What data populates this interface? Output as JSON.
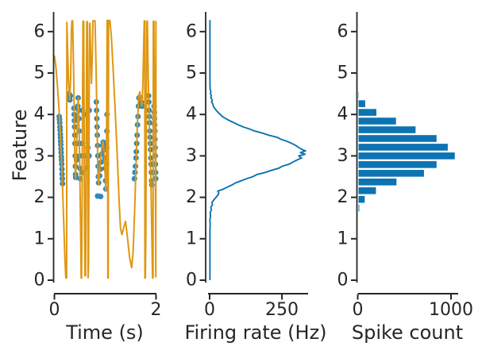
{
  "figure": {
    "background": "#ffffff"
  },
  "palette": {
    "blue": "#0d73b2",
    "orange": "#df9713",
    "axis_color": "#262626",
    "bar_edge": "#ffffff"
  },
  "chart_data": [
    {
      "id": "feature_vs_time",
      "type": "line+scatter",
      "xlabel": "Time (s)",
      "ylabel": "Feature",
      "xlim": [
        0,
        2
      ],
      "ylim": [
        0,
        6.28
      ],
      "xticks": {
        "values": [
          0,
          2
        ],
        "labels": [
          "0",
          "2"
        ]
      },
      "yticks": {
        "values": [
          0,
          1,
          2,
          3,
          4,
          5,
          6
        ],
        "labels": [
          "0",
          "1",
          "2",
          "3",
          "4",
          "5",
          "6"
        ]
      },
      "signal": [
        [
          0,
          5.42
        ],
        [
          0.03,
          5.15
        ],
        [
          0.06,
          4.7
        ],
        [
          0.09,
          4.15
        ],
        [
          0.12,
          3.45
        ],
        [
          0.15,
          2.6
        ],
        [
          0.18,
          1.55
        ],
        [
          0.21,
          0.45
        ],
        [
          0.225,
          0.06
        ],
        [
          0.24,
          0.05
        ],
        [
          0.245,
          6.22
        ],
        [
          0.26,
          5.6
        ],
        [
          0.28,
          4.75
        ],
        [
          0.3,
          4.35
        ],
        [
          0.32,
          4.9
        ],
        [
          0.335,
          6.0
        ],
        [
          0.345,
          6.26
        ],
        [
          0.36,
          6.26
        ],
        [
          0.375,
          5.3
        ],
        [
          0.39,
          4.0
        ],
        [
          0.405,
          2.8
        ],
        [
          0.415,
          2.45
        ],
        [
          0.43,
          2.85
        ],
        [
          0.445,
          3.5
        ],
        [
          0.46,
          4.2
        ],
        [
          0.47,
          4.4
        ],
        [
          0.48,
          4.05
        ],
        [
          0.49,
          3.4
        ],
        [
          0.5,
          2.6
        ],
        [
          0.515,
          1.3
        ],
        [
          0.527,
          0.06
        ],
        [
          0.535,
          0.05
        ],
        [
          0.545,
          1.8
        ],
        [
          0.555,
          4.4
        ],
        [
          0.562,
          6.25
        ],
        [
          0.576,
          6.25
        ],
        [
          0.585,
          4.2
        ],
        [
          0.593,
          1.2
        ],
        [
          0.6,
          0.12
        ],
        [
          0.606,
          0.5
        ],
        [
          0.612,
          0.1
        ],
        [
          0.62,
          1.4
        ],
        [
          0.63,
          4.6
        ],
        [
          0.637,
          6.24
        ],
        [
          0.648,
          6.24
        ],
        [
          0.656,
          3.4
        ],
        [
          0.663,
          0.06
        ],
        [
          0.672,
          0.4
        ],
        [
          0.68,
          2.6
        ],
        [
          0.687,
          5.3
        ],
        [
          0.693,
          6.2
        ],
        [
          0.7,
          6.2
        ],
        [
          0.715,
          5.3
        ],
        [
          0.73,
          4.75
        ],
        [
          0.745,
          5.4
        ],
        [
          0.76,
          6.26
        ],
        [
          0.8,
          6.26
        ],
        [
          0.82,
          5.1
        ],
        [
          0.84,
          3.7
        ],
        [
          0.858,
          2.5
        ],
        [
          0.868,
          2.3
        ],
        [
          0.885,
          2.5
        ],
        [
          0.91,
          2.95
        ],
        [
          0.945,
          3.3
        ],
        [
          0.96,
          3.35
        ],
        [
          0.98,
          3.1
        ],
        [
          1.0,
          2.5
        ],
        [
          1.01,
          2.15
        ],
        [
          1.02,
          2.5
        ],
        [
          1.03,
          4.0
        ],
        [
          1.038,
          6.27
        ],
        [
          1.048,
          6.27
        ],
        [
          1.052,
          0.05
        ],
        [
          1.06,
          0.05
        ],
        [
          1.065,
          6.27
        ],
        [
          1.075,
          6.27
        ],
        [
          1.09,
          6.27
        ],
        [
          1.12,
          5.9
        ],
        [
          1.16,
          5.0
        ],
        [
          1.2,
          4.0
        ],
        [
          1.24,
          2.9
        ],
        [
          1.27,
          2.0
        ],
        [
          1.3,
          1.25
        ],
        [
          1.33,
          1.1
        ],
        [
          1.36,
          1.25
        ],
        [
          1.4,
          1.42
        ],
        [
          1.44,
          1.0
        ],
        [
          1.48,
          0.55
        ],
        [
          1.52,
          0.3
        ],
        [
          1.55,
          0.7
        ],
        [
          1.58,
          1.7
        ],
        [
          1.61,
          2.9
        ],
        [
          1.635,
          3.8
        ],
        [
          1.66,
          4.45
        ],
        [
          1.68,
          4.55
        ],
        [
          1.7,
          4.35
        ],
        [
          1.72,
          4.2
        ],
        [
          1.74,
          4.7
        ],
        [
          1.76,
          5.8
        ],
        [
          1.768,
          6.26
        ],
        [
          1.778,
          6.26
        ],
        [
          1.782,
          0.05
        ],
        [
          1.79,
          0.05
        ],
        [
          1.8,
          1.2
        ],
        [
          1.81,
          4.2
        ],
        [
          1.817,
          6.25
        ],
        [
          1.83,
          6.25
        ],
        [
          1.845,
          5.0
        ],
        [
          1.862,
          4.0
        ],
        [
          1.88,
          3.2
        ],
        [
          1.895,
          2.6
        ],
        [
          1.91,
          1.7
        ],
        [
          1.925,
          0.5
        ],
        [
          1.932,
          0.06
        ],
        [
          1.94,
          0.05
        ],
        [
          1.947,
          6.25
        ],
        [
          1.958,
          6.25
        ],
        [
          1.968,
          4.8
        ],
        [
          1.978,
          3.6
        ],
        [
          1.988,
          2.6
        ],
        [
          1.992,
          1.4
        ],
        [
          1.996,
          0.08
        ],
        [
          1.998,
          6.25
        ],
        [
          2.0,
          6.25
        ]
      ],
      "spikes": [
        [
          0.095,
          3.95
        ],
        [
          0.1,
          3.88
        ],
        [
          0.105,
          3.8
        ],
        [
          0.11,
          3.7
        ],
        [
          0.113,
          3.62
        ],
        [
          0.117,
          3.52
        ],
        [
          0.12,
          3.44
        ],
        [
          0.123,
          3.35
        ],
        [
          0.126,
          3.27
        ],
        [
          0.13,
          3.17
        ],
        [
          0.133,
          3.08
        ],
        [
          0.137,
          2.98
        ],
        [
          0.14,
          2.9
        ],
        [
          0.144,
          2.8
        ],
        [
          0.148,
          2.68
        ],
        [
          0.152,
          2.56
        ],
        [
          0.156,
          2.45
        ],
        [
          0.16,
          2.33
        ],
        [
          0.285,
          4.5
        ],
        [
          0.295,
          4.4
        ],
        [
          0.305,
          4.35
        ],
        [
          0.315,
          4.45
        ],
        [
          0.385,
          4.15
        ],
        [
          0.39,
          4.0
        ],
        [
          0.394,
          3.85
        ],
        [
          0.398,
          3.7
        ],
        [
          0.402,
          3.5
        ],
        [
          0.406,
          3.3
        ],
        [
          0.41,
          3.0
        ],
        [
          0.413,
          2.75
        ],
        [
          0.416,
          2.55
        ],
        [
          0.42,
          2.48
        ],
        [
          0.435,
          2.9
        ],
        [
          0.445,
          3.3
        ],
        [
          0.455,
          3.9
        ],
        [
          0.462,
          4.2
        ],
        [
          0.468,
          4.4
        ],
        [
          0.478,
          4.1
        ],
        [
          0.483,
          3.9
        ],
        [
          0.488,
          3.6
        ],
        [
          0.493,
          3.3
        ],
        [
          0.498,
          3.0
        ],
        [
          0.503,
          2.7
        ],
        [
          0.508,
          2.45
        ],
        [
          0.548,
          2.6
        ],
        [
          0.551,
          3.3
        ],
        [
          0.554,
          4.1
        ],
        [
          0.586,
          4.0
        ],
        [
          0.589,
          3.0
        ],
        [
          0.628,
          2.7
        ],
        [
          0.632,
          4.0
        ],
        [
          0.658,
          3.2
        ],
        [
          0.682,
          3.0
        ],
        [
          0.685,
          4.1
        ],
        [
          0.825,
          4.3
        ],
        [
          0.83,
          4.1
        ],
        [
          0.835,
          3.9
        ],
        [
          0.84,
          3.7
        ],
        [
          0.845,
          3.5
        ],
        [
          0.85,
          3.25
        ],
        [
          0.855,
          3.0
        ],
        [
          0.86,
          2.75
        ],
        [
          0.865,
          2.5
        ],
        [
          0.87,
          2.35
        ],
        [
          0.85,
          2.03
        ],
        [
          0.91,
          2.02
        ],
        [
          0.89,
          2.52
        ],
        [
          0.905,
          2.68
        ],
        [
          0.92,
          2.85
        ],
        [
          0.935,
          3.05
        ],
        [
          0.95,
          3.25
        ],
        [
          0.962,
          3.33
        ],
        [
          0.972,
          3.28
        ],
        [
          0.982,
          3.15
        ],
        [
          0.992,
          2.95
        ],
        [
          1.0,
          2.7
        ],
        [
          1.008,
          2.4
        ],
        [
          1.013,
          2.2
        ],
        [
          1.028,
          2.8
        ],
        [
          1.031,
          3.2
        ],
        [
          1.034,
          3.6
        ],
        [
          1.036,
          4.0
        ],
        [
          1.575,
          2.45
        ],
        [
          1.585,
          2.6
        ],
        [
          1.595,
          2.75
        ],
        [
          1.605,
          2.95
        ],
        [
          1.612,
          3.1
        ],
        [
          1.62,
          3.3
        ],
        [
          1.628,
          3.5
        ],
        [
          1.636,
          3.75
        ],
        [
          1.645,
          3.95
        ],
        [
          1.655,
          4.2
        ],
        [
          1.663,
          4.4
        ],
        [
          1.695,
          4.4
        ],
        [
          1.71,
          4.3
        ],
        [
          1.725,
          4.2
        ],
        [
          1.852,
          4.45
        ],
        [
          1.858,
          4.3
        ],
        [
          1.863,
          4.1
        ],
        [
          1.868,
          3.95
        ],
        [
          1.873,
          3.8
        ],
        [
          1.878,
          3.6
        ],
        [
          1.883,
          3.45
        ],
        [
          1.888,
          3.3
        ],
        [
          1.893,
          3.15
        ],
        [
          1.898,
          2.95
        ],
        [
          1.903,
          2.8
        ],
        [
          1.908,
          2.6
        ],
        [
          1.913,
          2.4
        ],
        [
          1.918,
          2.3
        ],
        [
          1.962,
          4.2
        ],
        [
          1.966,
          4.05
        ],
        [
          1.97,
          3.9
        ],
        [
          1.973,
          3.75
        ],
        [
          1.976,
          3.6
        ],
        [
          1.979,
          3.4
        ],
        [
          1.982,
          3.2
        ],
        [
          1.985,
          3.0
        ],
        [
          1.988,
          2.8
        ],
        [
          1.991,
          2.6
        ],
        [
          1.994,
          2.45
        ]
      ]
    },
    {
      "id": "rate_tuning_curve",
      "type": "line",
      "xlabel": "Firing rate (Hz)",
      "ylabel": "",
      "xlim": [
        0,
        340
      ],
      "ylim": [
        0,
        6.28
      ],
      "xticks": {
        "values": [
          0,
          250
        ],
        "labels": [
          "0",
          "250"
        ]
      },
      "yticks": {
        "values": [
          0,
          1,
          2,
          3,
          4,
          5,
          6
        ],
        "labels": [
          "0",
          "1",
          "2",
          "3",
          "4",
          "5",
          "6"
        ]
      },
      "points": [
        [
          0,
          1
        ],
        [
          0.4,
          1
        ],
        [
          0.8,
          1
        ],
        [
          1.2,
          1
        ],
        [
          1.35,
          2
        ],
        [
          1.45,
          1
        ],
        [
          1.55,
          3
        ],
        [
          1.63,
          2
        ],
        [
          1.7,
          6
        ],
        [
          1.76,
          4
        ],
        [
          1.82,
          10
        ],
        [
          1.88,
          8
        ],
        [
          1.95,
          16
        ],
        [
          2.0,
          22
        ],
        [
          2.05,
          28
        ],
        [
          2.1,
          32
        ],
        [
          2.15,
          28
        ],
        [
          2.2,
          48
        ],
        [
          2.25,
          62
        ],
        [
          2.3,
          78
        ],
        [
          2.35,
          90
        ],
        [
          2.4,
          110
        ],
        [
          2.45,
          128
        ],
        [
          2.5,
          150
        ],
        [
          2.55,
          163
        ],
        [
          2.6,
          192
        ],
        [
          2.65,
          213
        ],
        [
          2.7,
          238
        ],
        [
          2.75,
          252
        ],
        [
          2.8,
          275
        ],
        [
          2.85,
          288
        ],
        [
          2.9,
          302
        ],
        [
          2.95,
          318
        ],
        [
          3.0,
          308
        ],
        [
          3.04,
          330
        ],
        [
          3.08,
          314
        ],
        [
          3.12,
          332
        ],
        [
          3.16,
          318
        ],
        [
          3.2,
          309
        ],
        [
          3.25,
          298
        ],
        [
          3.3,
          284
        ],
        [
          3.35,
          268
        ],
        [
          3.4,
          247
        ],
        [
          3.45,
          233
        ],
        [
          3.5,
          204
        ],
        [
          3.55,
          183
        ],
        [
          3.6,
          156
        ],
        [
          3.65,
          138
        ],
        [
          3.7,
          116
        ],
        [
          3.75,
          99
        ],
        [
          3.8,
          84
        ],
        [
          3.85,
          69
        ],
        [
          3.9,
          56
        ],
        [
          3.95,
          44
        ],
        [
          4.0,
          37
        ],
        [
          4.05,
          29
        ],
        [
          4.1,
          23
        ],
        [
          4.15,
          17
        ],
        [
          4.2,
          13
        ],
        [
          4.25,
          11
        ],
        [
          4.3,
          7
        ],
        [
          4.35,
          9
        ],
        [
          4.4,
          4
        ],
        [
          4.45,
          6
        ],
        [
          4.5,
          3
        ],
        [
          4.55,
          4
        ],
        [
          4.6,
          2
        ],
        [
          4.7,
          1
        ],
        [
          4.9,
          1
        ],
        [
          5.2,
          1
        ],
        [
          5.6,
          1
        ],
        [
          6.0,
          1
        ],
        [
          6.28,
          1
        ]
      ]
    },
    {
      "id": "spike_count_histogram",
      "type": "bar-h",
      "xlabel": "Spike count",
      "ylabel": "",
      "xlim": [
        0,
        1085
      ],
      "ylim": [
        0,
        6.28
      ],
      "xticks": {
        "values": [
          0,
          1000
        ],
        "labels": [
          "0",
          "1000"
        ]
      },
      "yticks": {
        "values": [
          0,
          1,
          2,
          3,
          4,
          5,
          6
        ],
        "labels": [
          "0",
          "1",
          "2",
          "3",
          "4",
          "5",
          "6"
        ]
      },
      "bin_width": 0.21,
      "bin_centers": [
        1.74,
        1.95,
        2.16,
        2.37,
        2.58,
        2.79,
        3.0,
        3.21,
        3.42,
        3.63,
        3.84,
        4.05,
        4.26,
        4.47
      ],
      "counts": [
        17,
        75,
        195,
        415,
        710,
        845,
        1040,
        965,
        845,
        620,
        410,
        200,
        80,
        12
      ]
    }
  ]
}
